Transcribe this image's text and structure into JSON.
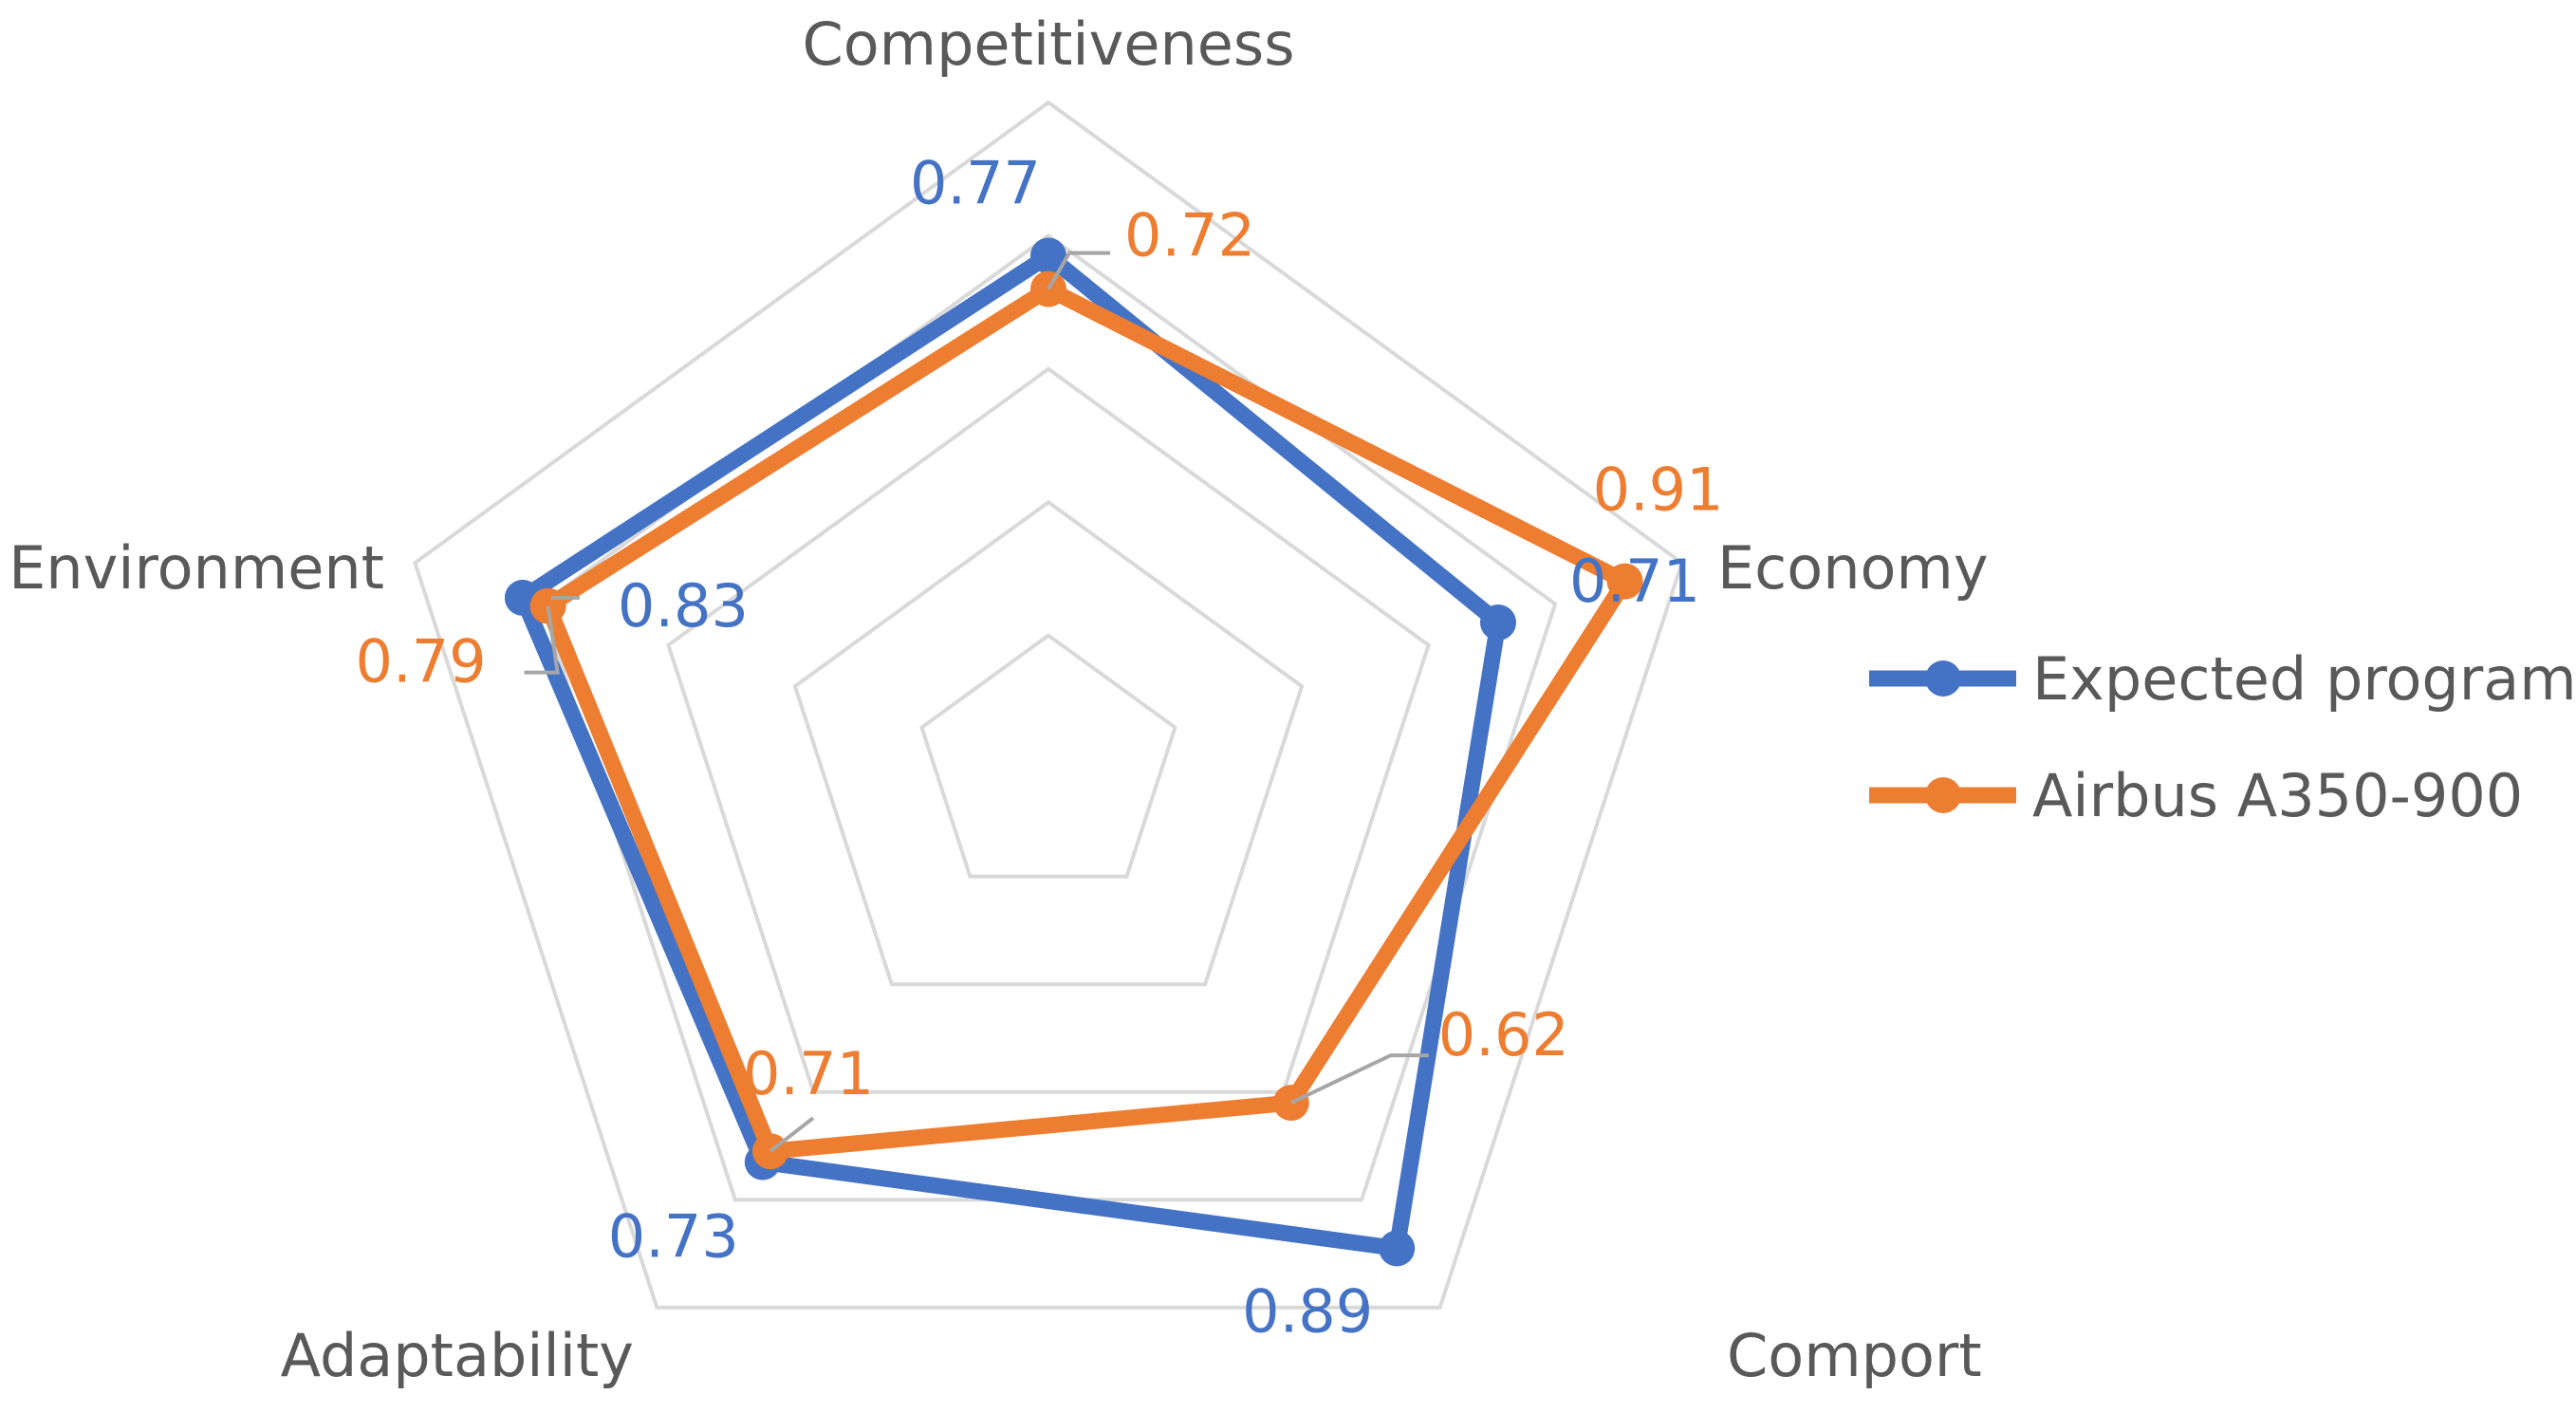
{
  "chart_data": {
    "type": "radar",
    "axes": [
      "Competitiveness",
      "Economy",
      "Comport",
      "Adaptability",
      "Environment"
    ],
    "rlim": [
      0,
      1
    ],
    "gridlines": 5,
    "legend_position": "right",
    "series": [
      {
        "name": "Expected program",
        "color": "#4472C4",
        "values": [
          0.77,
          0.71,
          0.89,
          0.73,
          0.83
        ],
        "labels": [
          "0.77",
          "0.71",
          "0.89",
          "0.73",
          "0.83"
        ]
      },
      {
        "name": "Airbus A350-900",
        "color": "#ED7D31",
        "values": [
          0.72,
          0.91,
          0.62,
          0.71,
          0.79
        ],
        "labels": [
          "0.72",
          "0.91",
          "0.62",
          "0.71",
          "0.79"
        ]
      }
    ]
  }
}
